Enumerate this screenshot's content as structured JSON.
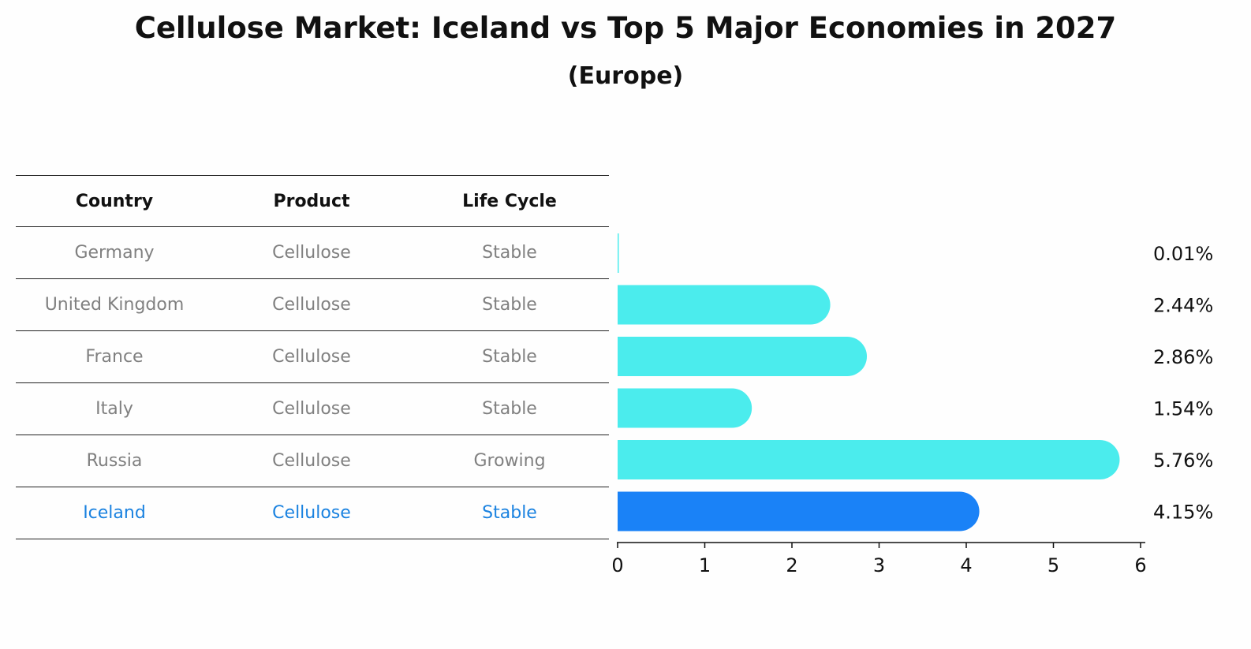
{
  "title": "Cellulose Market: Iceland vs Top 5 Major Economies in 2027",
  "subtitle": "(Europe)",
  "table": {
    "headers": [
      "Country",
      "Product",
      "Life Cycle"
    ],
    "rows": [
      {
        "country": "Germany",
        "product": "Cellulose",
        "life_cycle": "Stable"
      },
      {
        "country": "United Kingdom",
        "product": "Cellulose",
        "life_cycle": "Stable"
      },
      {
        "country": "France",
        "product": "Cellulose",
        "life_cycle": "Stable"
      },
      {
        "country": "Italy",
        "product": "Cellulose",
        "life_cycle": "Stable"
      },
      {
        "country": "Russia",
        "product": "Cellulose",
        "life_cycle": "Growing"
      },
      {
        "country": "Iceland",
        "product": "Cellulose",
        "life_cycle": "Stable"
      }
    ]
  },
  "colors": {
    "bar": "#4beced",
    "highlight": "#1a82f7",
    "highlight_text": "#1a82e0",
    "muted_text": "#808080"
  },
  "chart_data": {
    "type": "bar",
    "orientation": "horizontal",
    "categories": [
      "Germany",
      "United Kingdom",
      "France",
      "Italy",
      "Russia",
      "Iceland"
    ],
    "values": [
      0.01,
      2.44,
      2.86,
      1.54,
      5.76,
      4.15
    ],
    "labels": [
      "0.01%",
      "2.44%",
      "2.86%",
      "1.54%",
      "5.76%",
      "4.15%"
    ],
    "highlight": "Iceland",
    "xlim": [
      0,
      6
    ],
    "xticks": [
      "0",
      "1",
      "2",
      "3",
      "4",
      "5",
      "6"
    ]
  }
}
